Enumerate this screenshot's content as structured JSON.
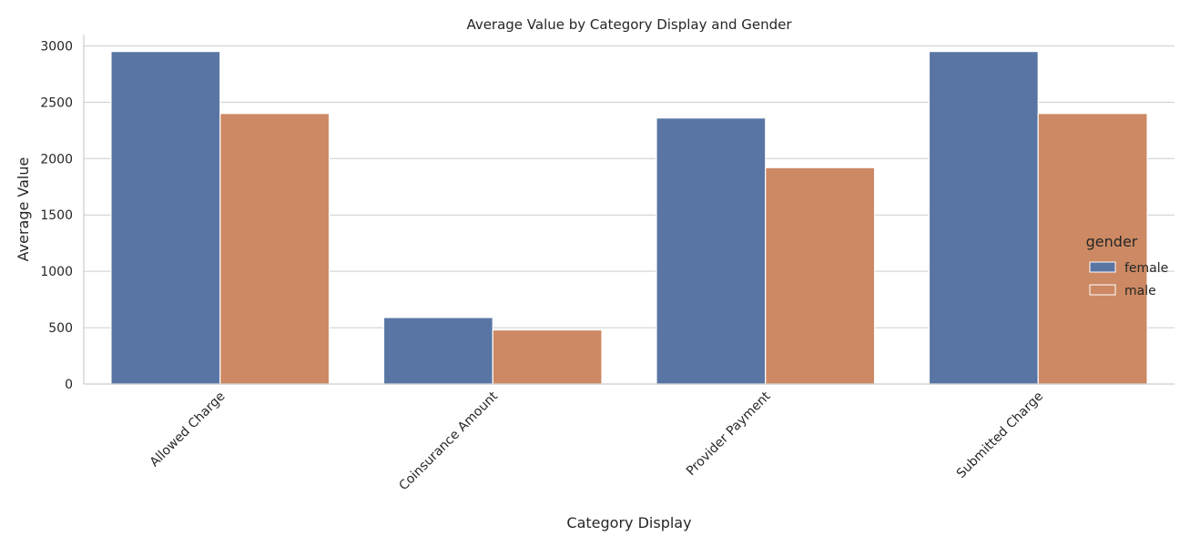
{
  "chart_data": {
    "type": "bar",
    "title": "Average Value by Category Display and Gender",
    "xlabel": "Category Display",
    "ylabel": "Average Value",
    "categories": [
      "Allowed Charge",
      "Coinsurance Amount",
      "Provider Payment",
      "Submitted Charge"
    ],
    "series": [
      {
        "name": "female",
        "color": "#5975a4",
        "values": [
          2950,
          590,
          2360,
          2950
        ]
      },
      {
        "name": "male",
        "color": "#cc8963",
        "values": [
          2400,
          480,
          1920,
          2400
        ]
      }
    ],
    "ylim": [
      0,
      3100
    ],
    "yticks": [
      0,
      500,
      1000,
      1500,
      2000,
      2500,
      3000
    ],
    "grid": true,
    "legend": {
      "title": "gender",
      "placement": "right"
    }
  }
}
